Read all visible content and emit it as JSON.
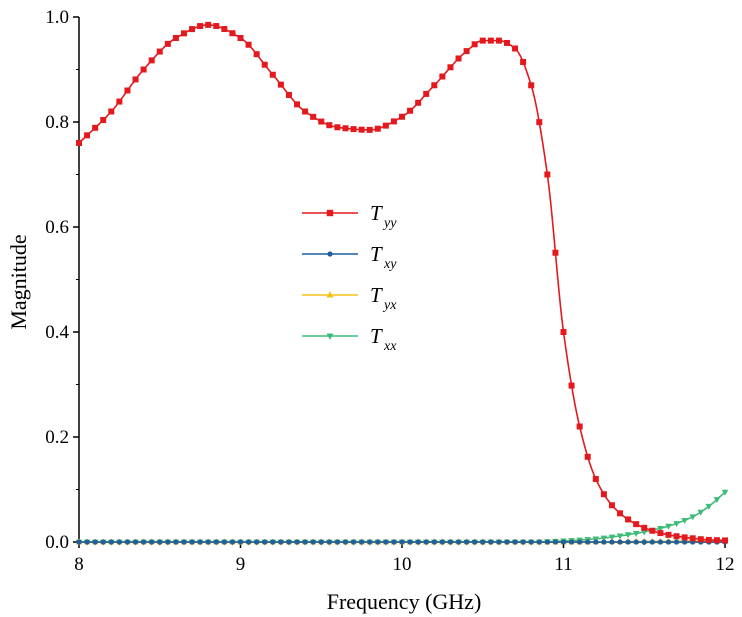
{
  "chart_data": {
    "type": "line",
    "title": "",
    "xlabel": "Frequency (GHz)",
    "ylabel": "Magnitude",
    "xlim": [
      8,
      12
    ],
    "ylim": [
      0,
      1.0
    ],
    "x_ticks": [
      "8",
      "9",
      "10",
      "11",
      "12"
    ],
    "y_ticks": [
      "0.0",
      "0.2",
      "0.4",
      "0.6",
      "0.8",
      "1.0"
    ],
    "grid": false,
    "legend_position": "center-left",
    "series": [
      {
        "name": "Tyy",
        "legend_main": "T",
        "legend_sub": "yy",
        "color": "#e3191e",
        "marker": "square",
        "x": [
          8.0,
          8.2,
          8.4,
          8.6,
          8.8,
          9.0,
          9.2,
          9.4,
          9.6,
          9.8,
          10.0,
          10.2,
          10.4,
          10.5,
          10.6,
          10.7,
          10.8,
          10.9,
          11.0,
          11.1,
          11.2,
          11.3,
          11.4,
          11.5,
          11.6,
          11.7,
          11.8,
          11.9,
          12.0
        ],
        "values": [
          0.76,
          0.82,
          0.9,
          0.96,
          0.985,
          0.96,
          0.89,
          0.82,
          0.79,
          0.785,
          0.81,
          0.87,
          0.935,
          0.955,
          0.955,
          0.94,
          0.87,
          0.7,
          0.4,
          0.22,
          0.12,
          0.07,
          0.043,
          0.027,
          0.017,
          0.011,
          0.007,
          0.004,
          0.003
        ]
      },
      {
        "name": "Txy",
        "legend_main": "T",
        "legend_sub": "xy",
        "color": "#1f5f9e",
        "marker": "circle",
        "x": [
          8.0,
          9.0,
          10.0,
          11.0,
          12.0
        ],
        "values": [
          0.0,
          0.0,
          0.0,
          0.0,
          0.0
        ]
      },
      {
        "name": "Tyx",
        "legend_main": "T",
        "legend_sub": "yx",
        "color": "#f2c21b",
        "marker": "triangle-up",
        "x": [
          8.0,
          9.0,
          10.0,
          11.0,
          11.5,
          12.0
        ],
        "values": [
          0.0,
          0.0,
          0.0,
          0.0,
          0.001,
          0.002
        ]
      },
      {
        "name": "Txx",
        "legend_main": "T",
        "legend_sub": "xx",
        "color": "#3dbb77",
        "marker": "triangle-down",
        "x": [
          8.0,
          8.5,
          9.0,
          9.5,
          10.0,
          10.5,
          10.8,
          11.0,
          11.2,
          11.4,
          11.6,
          11.8,
          11.9,
          12.0
        ],
        "values": [
          0.0,
          0.0,
          0.0,
          0.0,
          0.0,
          0.0,
          0.0,
          0.002,
          0.006,
          0.014,
          0.026,
          0.048,
          0.068,
          0.095
        ]
      }
    ]
  }
}
